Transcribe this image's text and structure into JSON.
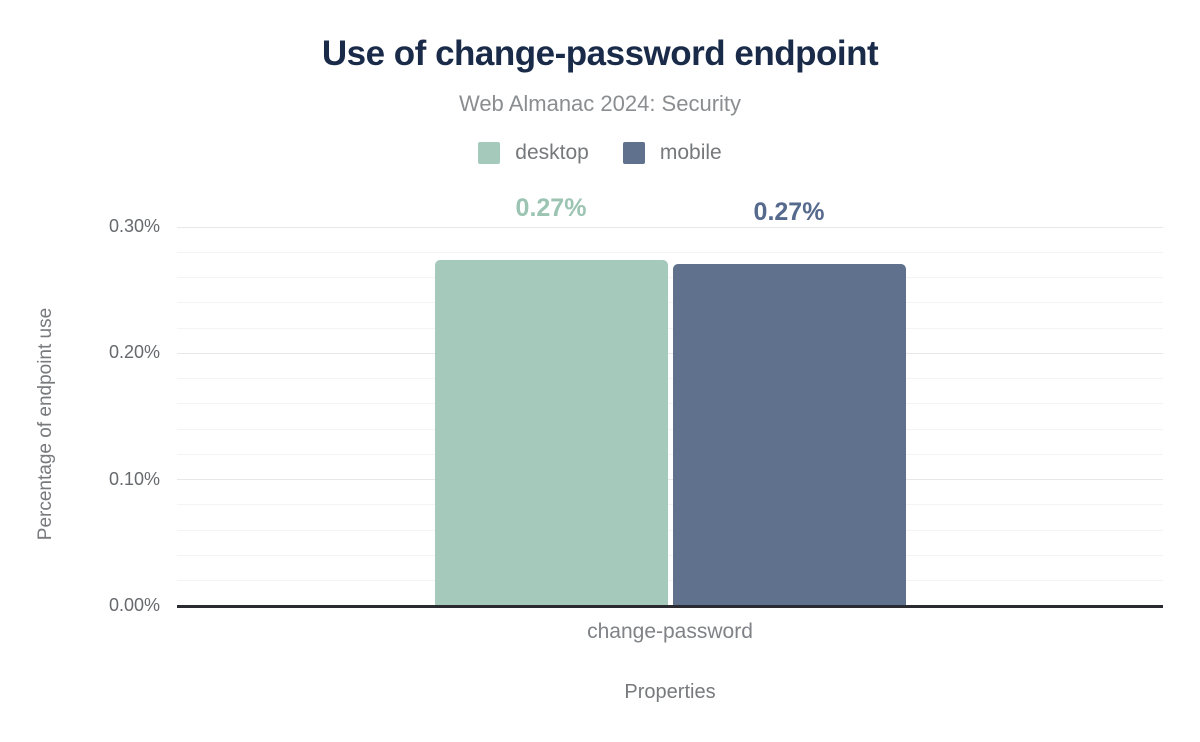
{
  "chart_data": {
    "type": "bar",
    "title": "Use of change-password endpoint",
    "subtitle": "Web Almanac 2024: Security",
    "categories": [
      "change-password"
    ],
    "series": [
      {
        "name": "desktop",
        "values": [
          0.274
        ],
        "display_labels": [
          "0.27%"
        ],
        "color": "#a5c9ba",
        "label_color": "#9cc4b2"
      },
      {
        "name": "mobile",
        "values": [
          0.271
        ],
        "display_labels": [
          "0.27%"
        ],
        "color": "#5f718d",
        "label_color": "#556a8c"
      }
    ],
    "xlabel": "Properties",
    "ylabel": "Percentage of endpoint use",
    "ylim": [
      0,
      0.3
    ],
    "yticks": [
      {
        "value": 0.3,
        "label": "0.30%"
      },
      {
        "value": 0.2,
        "label": "0.20%"
      },
      {
        "value": 0.1,
        "label": "0.10%"
      },
      {
        "value": 0.0,
        "label": "0.00%"
      }
    ],
    "grid": {
      "minor_step": 0.02,
      "major_step": 0.1,
      "visible": true
    },
    "legend_position": "top"
  }
}
